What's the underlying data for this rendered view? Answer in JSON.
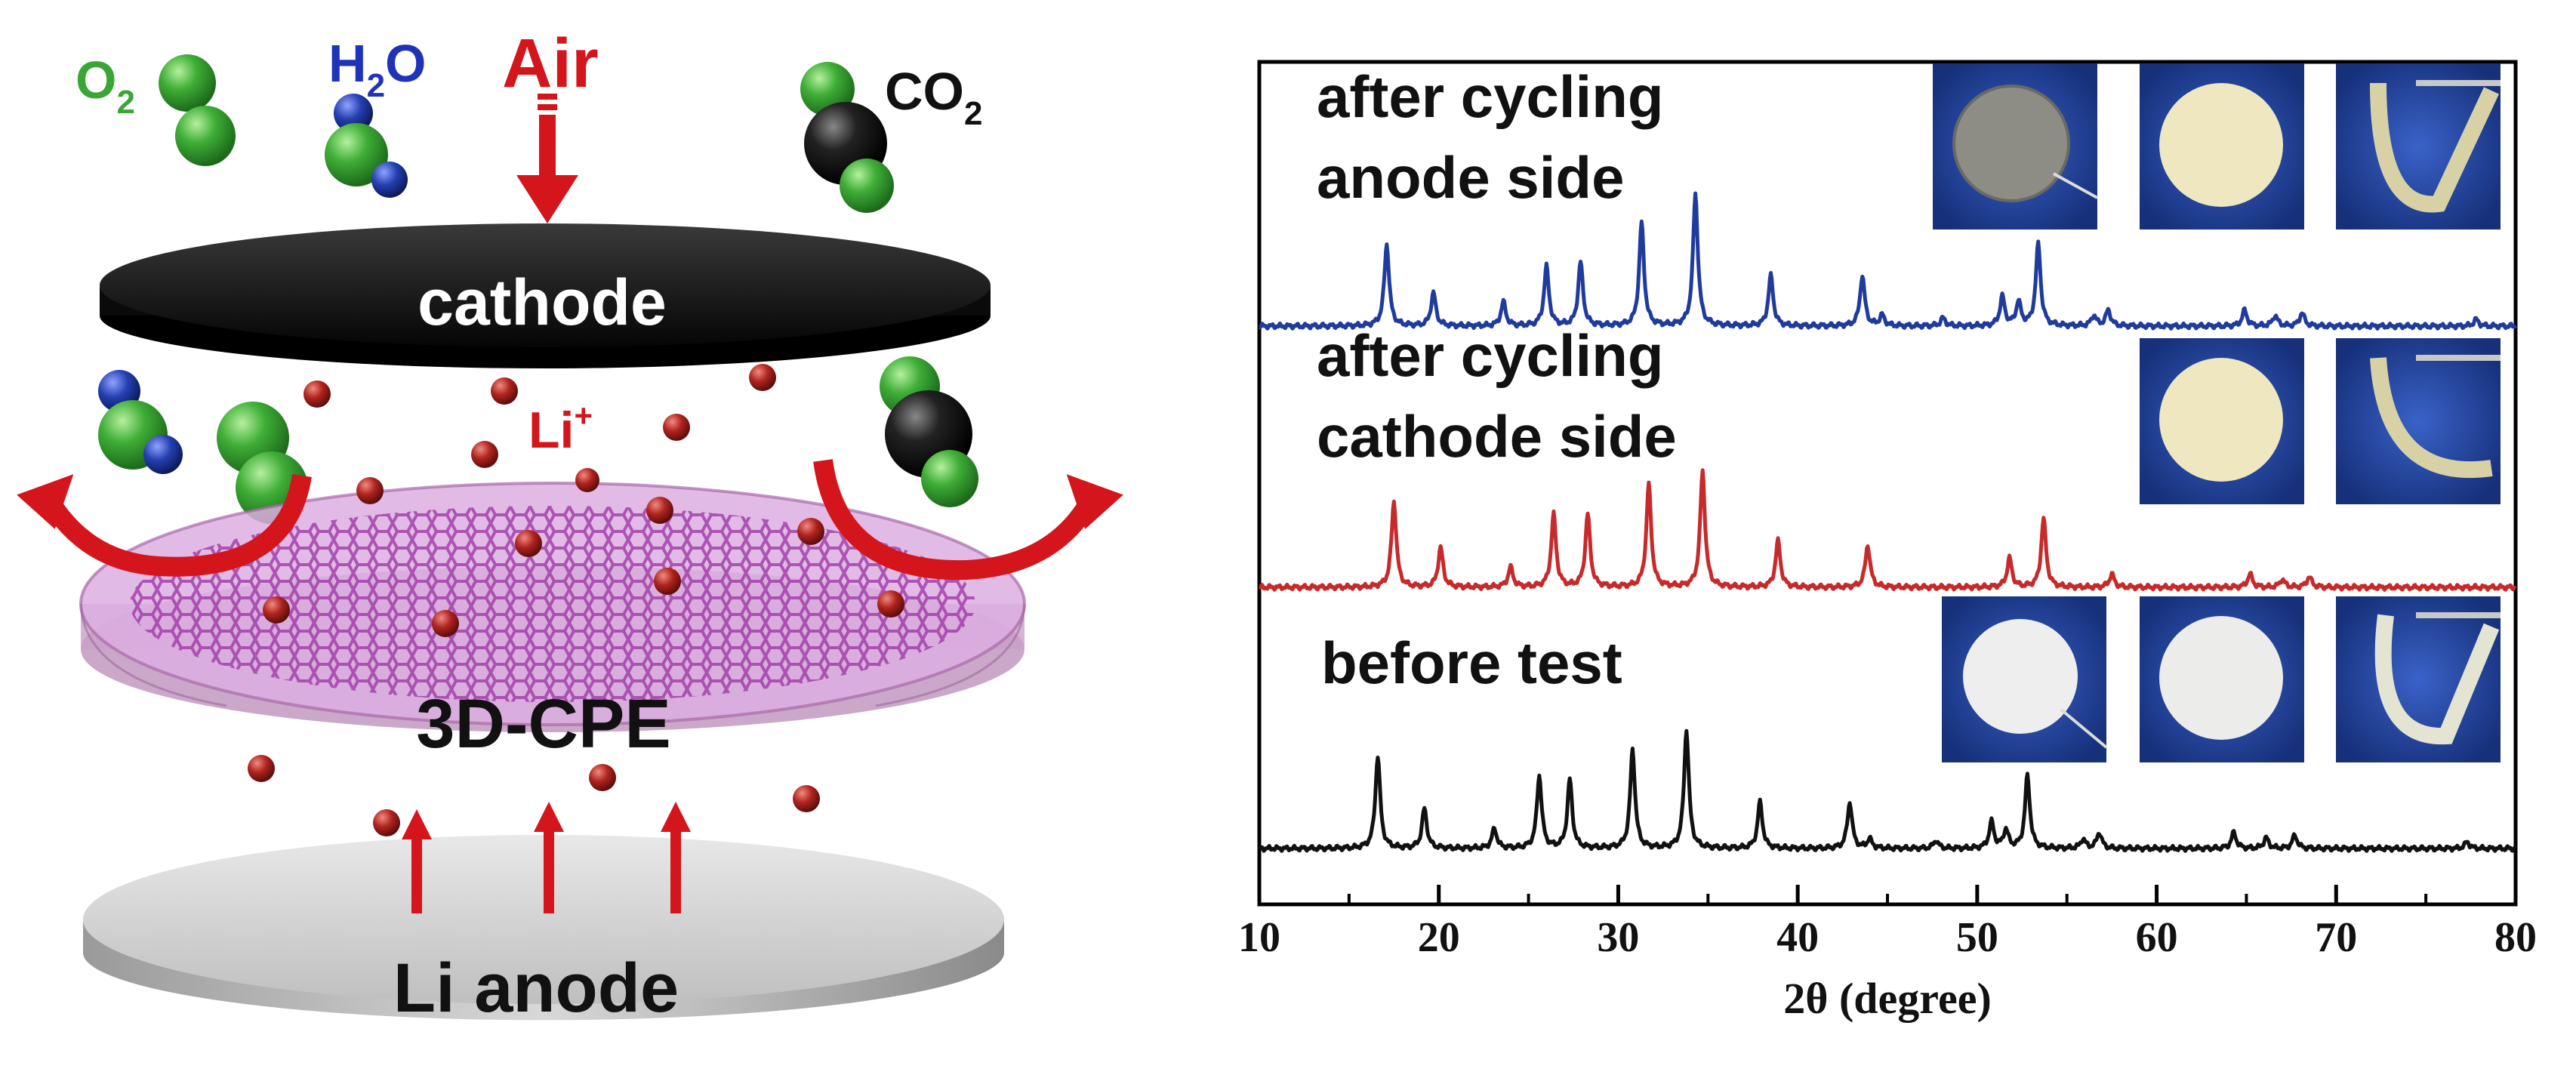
{
  "schematic": {
    "o2": "O",
    "o2_sub": "2",
    "h2o_h": "H",
    "h2o_sub": "2",
    "h2o_o": "O",
    "air": "Air",
    "co2": "CO",
    "co2_sub": "2",
    "cathode": "cathode",
    "li_ion": "Li",
    "li_ion_sup": "+",
    "cpe": "3D-CPE",
    "anode": "Li anode",
    "colors": {
      "oxygen": "#3aa635",
      "hydrogen": "#1f3aa0",
      "carbon": "#111111",
      "li_ion": "#a8201e",
      "arrow": "#d4151b",
      "membrane": "#c889c9",
      "anode": "#d0d0d0"
    }
  },
  "chart_data": {
    "type": "line",
    "xlabel": "2θ (degree)",
    "ylabel": "",
    "xlim": [
      10,
      80
    ],
    "xticks": [
      "10",
      "20",
      "30",
      "40",
      "50",
      "60",
      "70",
      "80"
    ],
    "grid": false,
    "series": [
      {
        "name": "after cycling anode side",
        "label_lines": [
          "after cycling",
          "anode side"
        ],
        "color": "#1f3b9c",
        "offset": 2.0,
        "peaks": [
          [
            17.1,
            0.62
          ],
          [
            19.7,
            0.25
          ],
          [
            23.6,
            0.18
          ],
          [
            26.0,
            0.45
          ],
          [
            27.9,
            0.48
          ],
          [
            31.3,
            0.78
          ],
          [
            34.3,
            1.0
          ],
          [
            38.5,
            0.38
          ],
          [
            43.6,
            0.38
          ],
          [
            44.7,
            0.08
          ],
          [
            48.1,
            0.06
          ],
          [
            51.4,
            0.22
          ],
          [
            52.3,
            0.18
          ],
          [
            53.4,
            0.62
          ],
          [
            56.5,
            0.08
          ],
          [
            57.3,
            0.12
          ],
          [
            64.9,
            0.12
          ],
          [
            66.6,
            0.08
          ],
          [
            68.1,
            0.1
          ],
          [
            77.8,
            0.05
          ]
        ]
      },
      {
        "name": "after cycling cathode side",
        "label_lines": [
          "after cycling",
          "cathode side"
        ],
        "color": "#c62a2a",
        "offset": 1.0,
        "peaks": [
          [
            17.5,
            0.65
          ],
          [
            20.1,
            0.3
          ],
          [
            24.0,
            0.15
          ],
          [
            26.4,
            0.55
          ],
          [
            28.3,
            0.55
          ],
          [
            31.7,
            0.78
          ],
          [
            34.7,
            0.88
          ],
          [
            38.9,
            0.35
          ],
          [
            43.9,
            0.32
          ],
          [
            51.8,
            0.22
          ],
          [
            53.7,
            0.52
          ],
          [
            57.5,
            0.1
          ],
          [
            65.2,
            0.1
          ],
          [
            67.0,
            0.06
          ],
          [
            68.5,
            0.08
          ]
        ]
      },
      {
        "name": "before test",
        "label_lines": [
          "before test"
        ],
        "color": "#111111",
        "offset": 0.0,
        "peaks": [
          [
            16.6,
            0.7
          ],
          [
            19.2,
            0.3
          ],
          [
            23.1,
            0.15
          ],
          [
            25.6,
            0.55
          ],
          [
            27.3,
            0.52
          ],
          [
            30.8,
            0.75
          ],
          [
            33.8,
            0.9
          ],
          [
            37.9,
            0.35
          ],
          [
            42.9,
            0.35
          ],
          [
            44.0,
            0.07
          ],
          [
            47.7,
            0.06
          ],
          [
            50.8,
            0.2
          ],
          [
            51.6,
            0.14
          ],
          [
            52.8,
            0.55
          ],
          [
            55.9,
            0.07
          ],
          [
            56.8,
            0.12
          ],
          [
            64.3,
            0.12
          ],
          [
            66.1,
            0.08
          ],
          [
            67.7,
            0.1
          ],
          [
            77.3,
            0.05
          ]
        ]
      }
    ]
  }
}
